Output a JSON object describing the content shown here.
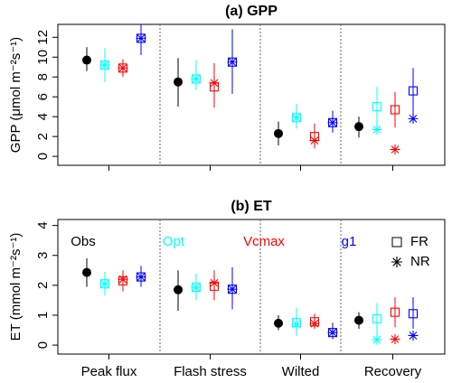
{
  "chart_data": [
    {
      "type": "errorbar",
      "title": "(a) GPP",
      "ylabel": "GPP (μmol m⁻²s⁻¹)",
      "categories": [
        "Peak flux",
        "Flash stress",
        "Wilted",
        "Recovery"
      ],
      "ylim": [
        -0.9,
        13.3
      ],
      "yticks": [
        0,
        2,
        4,
        6,
        8,
        10,
        12
      ],
      "series": [
        {
          "name": "Obs",
          "color": "black",
          "values": [
            9.7,
            7.5,
            2.3,
            3.0
          ],
          "low": [
            8.6,
            5.0,
            1.1,
            1.9
          ],
          "high": [
            11.0,
            9.9,
            3.5,
            4.0
          ]
        },
        {
          "name": "Opt",
          "color": "cyan",
          "values": [
            9.2,
            7.8,
            3.9,
            5.0
          ],
          "nr_values": [
            9.2,
            7.8,
            3.9,
            2.7
          ],
          "low": [
            7.5,
            6.7,
            2.8,
            3.0
          ],
          "high": [
            10.9,
            9.7,
            5.3,
            7.0
          ]
        },
        {
          "name": "Vcmax",
          "color": "red",
          "values": [
            8.9,
            7.0,
            2.0,
            4.7
          ],
          "nr_values": [
            8.9,
            7.4,
            1.6,
            0.7
          ],
          "low": [
            8.0,
            4.9,
            0.8,
            2.9
          ],
          "high": [
            9.8,
            9.4,
            3.3,
            6.5
          ]
        },
        {
          "name": "g1",
          "color": "blue",
          "values": [
            11.9,
            9.5,
            3.4,
            6.6
          ],
          "nr_values": [
            11.9,
            9.5,
            3.4,
            3.8
          ],
          "low": [
            10.2,
            6.3,
            2.4,
            4.2
          ],
          "high": [
            13.3,
            12.8,
            4.6,
            8.9
          ]
        }
      ]
    },
    {
      "type": "errorbar",
      "title": "(b) ET",
      "ylabel": "ET (mmol m⁻²s⁻¹)",
      "categories": [
        "Peak flux",
        "Flash stress",
        "Wilted",
        "Recovery"
      ],
      "ylim": [
        -0.3,
        4.2
      ],
      "yticks": [
        0,
        1,
        2,
        3,
        4
      ],
      "marker_legend": [
        "FR",
        "NR"
      ],
      "series": [
        {
          "name": "Obs",
          "color": "black",
          "values": [
            2.43,
            1.85,
            0.73,
            0.83
          ],
          "low": [
            1.95,
            1.15,
            0.5,
            0.55
          ],
          "high": [
            2.9,
            2.5,
            1.0,
            1.1
          ]
        },
        {
          "name": "Opt",
          "color": "cyan",
          "values": [
            2.05,
            1.93,
            0.75,
            0.88
          ],
          "nr_values": [
            2.05,
            1.93,
            0.7,
            0.18
          ],
          "low": [
            1.65,
            1.5,
            0.3,
            0.3
          ],
          "high": [
            2.45,
            2.4,
            1.25,
            1.4
          ]
        },
        {
          "name": "Vcmax",
          "color": "red",
          "values": [
            2.15,
            1.97,
            0.78,
            1.1
          ],
          "nr_values": [
            2.2,
            2.08,
            0.72,
            0.2
          ],
          "low": [
            1.8,
            1.5,
            0.55,
            0.6
          ],
          "high": [
            2.5,
            2.5,
            1.05,
            1.6
          ]
        },
        {
          "name": "g1",
          "color": "blue",
          "values": [
            2.28,
            1.87,
            0.42,
            1.05
          ],
          "nr_values": [
            2.28,
            1.87,
            0.42,
            0.32
          ],
          "low": [
            1.95,
            1.2,
            0.2,
            0.55
          ],
          "high": [
            2.65,
            2.6,
            0.75,
            1.6
          ]
        }
      ]
    }
  ]
}
